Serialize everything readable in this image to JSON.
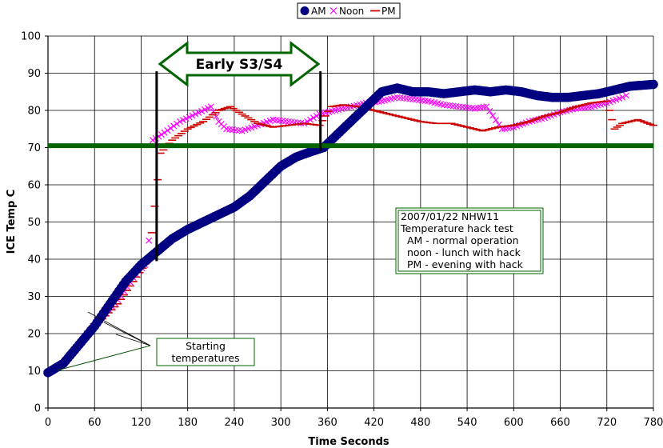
{
  "chart_data": {
    "type": "scatter",
    "xlabel": "Time  Seconds",
    "ylabel": "ICE Temp C",
    "xlim": [
      0,
      780
    ],
    "ylim": [
      0,
      100
    ],
    "x_ticks": [
      0,
      60,
      120,
      180,
      240,
      300,
      360,
      420,
      480,
      540,
      600,
      660,
      720,
      780
    ],
    "y_ticks": [
      0,
      10,
      20,
      30,
      40,
      50,
      60,
      70,
      80,
      90,
      100
    ],
    "grid": "vertical and horizontal",
    "legend": "top-center",
    "series": [
      {
        "name": "AM",
        "marker": "circle",
        "color": "#000080",
        "points": [
          [
            0,
            9.5
          ],
          [
            20,
            12
          ],
          [
            40,
            17
          ],
          [
            60,
            22
          ],
          [
            80,
            28
          ],
          [
            100,
            34
          ],
          [
            120,
            38.5
          ],
          [
            140,
            42
          ],
          [
            160,
            45.5
          ],
          [
            180,
            48
          ],
          [
            200,
            50
          ],
          [
            220,
            52
          ],
          [
            240,
            54
          ],
          [
            260,
            57
          ],
          [
            280,
            61
          ],
          [
            300,
            65
          ],
          [
            320,
            67.5
          ],
          [
            340,
            69
          ],
          [
            355,
            70
          ],
          [
            370,
            73
          ],
          [
            390,
            77
          ],
          [
            410,
            81
          ],
          [
            430,
            85
          ],
          [
            450,
            86
          ],
          [
            470,
            85
          ],
          [
            490,
            85
          ],
          [
            510,
            84.5
          ],
          [
            530,
            85
          ],
          [
            550,
            85.5
          ],
          [
            570,
            85
          ],
          [
            590,
            85.5
          ],
          [
            610,
            85
          ],
          [
            630,
            84
          ],
          [
            650,
            83.5
          ],
          [
            670,
            83.5
          ],
          [
            690,
            84
          ],
          [
            710,
            84.5
          ],
          [
            730,
            85.5
          ],
          [
            750,
            86.5
          ],
          [
            780,
            87
          ]
        ]
      },
      {
        "name": "Noon",
        "marker": "x",
        "color": "#ff00ff",
        "points": [
          [
            50,
            20
          ],
          [
            70,
            25
          ],
          [
            90,
            29
          ],
          [
            110,
            35
          ],
          [
            125,
            38.5
          ],
          [
            130,
            45
          ],
          [
            135,
            72
          ],
          [
            150,
            74
          ],
          [
            170,
            77
          ],
          [
            190,
            79
          ],
          [
            210,
            81
          ],
          [
            220,
            77
          ],
          [
            230,
            75
          ],
          [
            250,
            74.5
          ],
          [
            270,
            76
          ],
          [
            290,
            77.5
          ],
          [
            310,
            77
          ],
          [
            330,
            76.5
          ],
          [
            350,
            79
          ],
          [
            370,
            80
          ],
          [
            390,
            81
          ],
          [
            410,
            82
          ],
          [
            430,
            82.5
          ],
          [
            450,
            83.5
          ],
          [
            470,
            83
          ],
          [
            490,
            82.5
          ],
          [
            510,
            81.5
          ],
          [
            530,
            81
          ],
          [
            550,
            80.5
          ],
          [
            565,
            81
          ],
          [
            585,
            75
          ],
          [
            600,
            75.5
          ],
          [
            620,
            77
          ],
          [
            640,
            78
          ],
          [
            660,
            79.5
          ],
          [
            680,
            80.5
          ],
          [
            700,
            81
          ],
          [
            720,
            82
          ],
          [
            740,
            83.5
          ],
          [
            745,
            84
          ]
        ]
      },
      {
        "name": "PM",
        "marker": "dash",
        "color": "#cc0000",
        "points": [
          [
            50,
            19.5
          ],
          [
            70,
            24
          ],
          [
            90,
            28
          ],
          [
            110,
            34
          ],
          [
            130,
            40
          ],
          [
            145,
            68.5
          ],
          [
            160,
            72
          ],
          [
            180,
            75
          ],
          [
            200,
            77
          ],
          [
            220,
            80
          ],
          [
            235,
            81
          ],
          [
            250,
            79
          ],
          [
            270,
            76.5
          ],
          [
            290,
            75.5
          ],
          [
            310,
            76
          ],
          [
            330,
            76.5
          ],
          [
            350,
            76
          ],
          [
            365,
            81
          ],
          [
            380,
            81.5
          ],
          [
            400,
            81
          ],
          [
            420,
            80
          ],
          [
            440,
            79
          ],
          [
            460,
            78
          ],
          [
            480,
            77
          ],
          [
            500,
            76.5
          ],
          [
            520,
            76.5
          ],
          [
            540,
            75.5
          ],
          [
            560,
            74.5
          ],
          [
            580,
            75.5
          ],
          [
            600,
            76
          ],
          [
            620,
            77
          ],
          [
            640,
            78.5
          ],
          [
            660,
            79.5
          ],
          [
            680,
            81
          ],
          [
            700,
            82
          ],
          [
            720,
            82.5
          ],
          [
            730,
            75
          ],
          [
            740,
            76.5
          ],
          [
            760,
            77.5
          ],
          [
            780,
            76
          ]
        ]
      }
    ],
    "threshold_line": {
      "y": 70.5,
      "color": "#006400"
    },
    "vertical_lines": [
      {
        "x": 140
      },
      {
        "x": 350
      }
    ],
    "region_label": "Early S3/S4",
    "note_lines": [
      "2007/01/22 NHW11",
      "Temperature hack test",
      "  AM - normal operation",
      "  noon - lunch with hack",
      "  PM - evening with hack"
    ],
    "callout_lines": [
      "Starting",
      "temperatures"
    ]
  }
}
